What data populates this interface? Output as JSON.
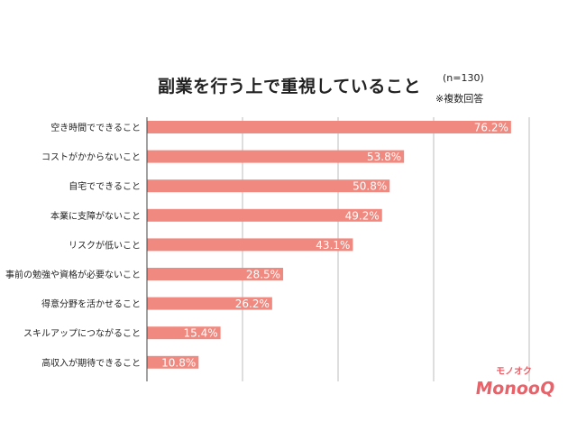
{
  "header": {
    "title": "副業を行う上で重視していること",
    "sample_size": "(n=130)",
    "footnote": "※複数回答"
  },
  "colors": {
    "bar": "#f08a80",
    "grid": "#bdbdbd",
    "axis": "#444444",
    "value_label": "#ffffff",
    "brand": "#e8626a"
  },
  "brand": {
    "kana": "モノオク",
    "wordmark": "MonooQ"
  },
  "chart_data": {
    "type": "bar",
    "orientation": "horizontal",
    "categories": [
      "空き時間でできること",
      "コストがかからないこと",
      "自宅でできること",
      "本業に支障がないこと",
      "リスクが低いこと",
      "事前の勉強や資格が必要ないこと",
      "得意分野を活かせること",
      "スキルアップにつながること",
      "高収入が期待できること"
    ],
    "values": [
      76.2,
      53.8,
      50.8,
      49.2,
      43.1,
      28.5,
      26.2,
      15.4,
      10.8
    ],
    "labels": [
      "76.2%",
      "53.8%",
      "50.8%",
      "49.2%",
      "43.1%",
      "28.5%",
      "26.2%",
      "15.4%",
      "10.8%"
    ],
    "title": "副業を行う上で重視していること",
    "xlim": [
      0,
      80
    ],
    "grid": true,
    "legend": "none"
  }
}
